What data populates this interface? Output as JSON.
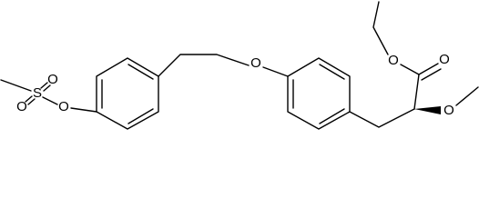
{
  "atoms": [
    "S",
    "O",
    "O",
    "O",
    "O",
    "O",
    "O",
    "O"
  ]
}
